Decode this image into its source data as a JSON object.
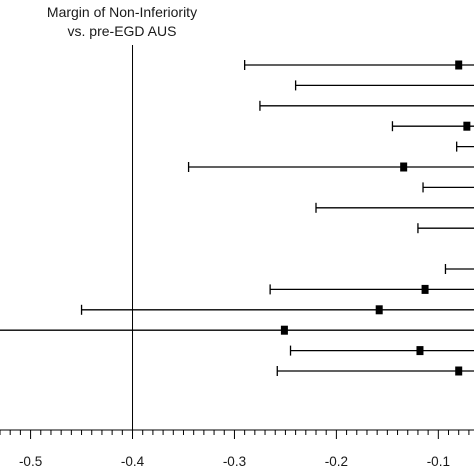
{
  "chart_data": {
    "type": "scatter",
    "title_lines": [
      "Margin of Non-Inferiority",
      "vs. pre-EGD AUS"
    ],
    "x_ticks": [
      -0.5,
      -0.4,
      -0.3,
      -0.2,
      -0.1
    ],
    "x_tick_labels": [
      "-0.5",
      "-0.4",
      "-0.3",
      "-0.2",
      "-0.1"
    ],
    "xlim": [
      -0.53,
      -0.065
    ],
    "reference_line": -0.4,
    "rows": [
      {
        "estimate": -0.08,
        "lower": -0.29,
        "upper": null
      },
      {
        "estimate": -0.059,
        "lower": -0.24,
        "upper": null
      },
      {
        "estimate": -0.052,
        "lower": -0.275,
        "upper": null
      },
      {
        "estimate": -0.072,
        "lower": -0.145,
        "upper": null
      },
      {
        "estimate": -0.045,
        "lower": -0.082,
        "upper": null
      },
      {
        "estimate": -0.134,
        "lower": -0.345,
        "upper": null
      },
      {
        "estimate": -0.05,
        "lower": -0.115,
        "upper": null
      },
      {
        "estimate": -0.045,
        "lower": -0.22,
        "upper": null
      },
      {
        "estimate": null,
        "lower": -0.12,
        "upper": null
      },
      {
        "estimate": null,
        "lower": -0.02,
        "upper": null
      },
      {
        "estimate": null,
        "lower": -0.093,
        "upper": null
      },
      {
        "estimate": -0.113,
        "lower": -0.265,
        "upper": null
      },
      {
        "estimate": -0.158,
        "lower": -0.45,
        "upper": null
      },
      {
        "estimate": -0.251,
        "lower": null,
        "upper": null
      },
      {
        "estimate": -0.118,
        "lower": -0.245,
        "upper": null
      },
      {
        "estimate": -0.08,
        "lower": -0.258,
        "upper": null
      }
    ]
  }
}
